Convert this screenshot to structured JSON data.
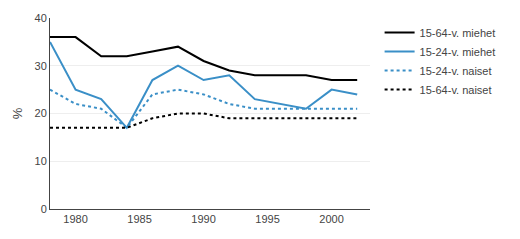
{
  "chart_data": {
    "type": "line",
    "x": [
      1978,
      1980,
      1982,
      1984,
      1986,
      1988,
      1990,
      1992,
      1994,
      1996,
      1998,
      2000,
      2002
    ],
    "series": [
      {
        "name": "15-64-v. miehet",
        "color": "#000000",
        "line_style": "solid",
        "values": [
          36,
          36,
          32,
          32,
          33,
          34,
          31,
          29,
          28,
          28,
          28,
          27,
          27
        ]
      },
      {
        "name": "15-24-v. miehet",
        "color": "#3a8fc7",
        "line_style": "solid",
        "values": [
          35,
          25,
          23,
          17,
          27,
          30,
          27,
          28,
          23,
          22,
          21,
          25,
          24
        ]
      },
      {
        "name": "15-24-v. naiset",
        "color": "#3a8fc7",
        "line_style": "dotted",
        "values": [
          25,
          22,
          21,
          17,
          24,
          25,
          24,
          22,
          21,
          21,
          21,
          21,
          21
        ]
      },
      {
        "name": "15-64-v. naiset",
        "color": "#000000",
        "line_style": "dotted",
        "values": [
          17,
          17,
          17,
          17,
          19,
          20,
          20,
          19,
          19,
          19,
          19,
          19,
          19
        ]
      }
    ],
    "ylabel": "%",
    "xlim": [
      1978,
      2003
    ],
    "xticks": [
      1980,
      1985,
      1990,
      1995,
      2000
    ],
    "ylim": [
      0,
      40
    ],
    "yticks": [
      0,
      10,
      20,
      30,
      40
    ],
    "grid": true,
    "legend": "right"
  }
}
